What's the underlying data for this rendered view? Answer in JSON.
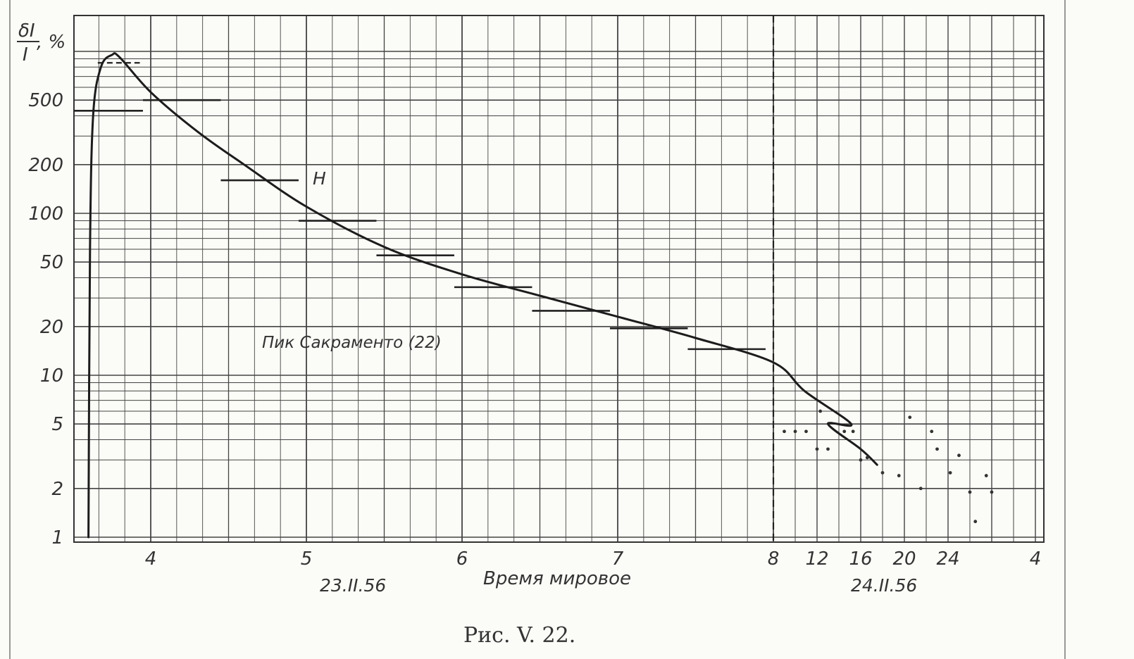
{
  "chart_data": {
    "type": "line",
    "title": "",
    "caption": "Рис. V. 22.",
    "xlabel": "Время мировое",
    "ylabel_numerator": "δI",
    "ylabel_denominator": "I",
    "ylabel_unit": ", %",
    "yscale": "log",
    "ylim": [
      1,
      1100
    ],
    "y_ticks": [
      1,
      2,
      5,
      10,
      20,
      50,
      100,
      200,
      500
    ],
    "x_ticks_hourly": [
      "4",
      "5",
      "6",
      "7",
      "8"
    ],
    "x_ticks_compressed": [
      "12",
      "16",
      "20",
      "24",
      "4"
    ],
    "date_labels": [
      "23.II.56",
      "24.II.56"
    ],
    "annotations": [
      "Пик Сакраменто (22)",
      "Н"
    ],
    "series": [
      {
        "name": "",
        "points_hourly": [
          [
            3.6,
            1
          ],
          [
            3.61,
            60
          ],
          [
            3.63,
            400
          ],
          [
            3.68,
            800
          ],
          [
            3.75,
            950
          ],
          [
            3.8,
            920
          ],
          [
            4.0,
            560
          ],
          [
            4.3,
            320
          ],
          [
            4.6,
            200
          ],
          [
            5.0,
            110
          ],
          [
            5.5,
            62
          ],
          [
            6.0,
            42
          ],
          [
            6.5,
            31
          ],
          [
            7.0,
            23
          ],
          [
            7.5,
            17
          ],
          [
            8.0,
            12
          ],
          [
            8.2,
            8
          ],
          [
            8.5,
            5
          ]
        ],
        "points_compressed_hours": [
          [
            13,
            5
          ],
          [
            16,
            3.5
          ],
          [
            17.5,
            2.8
          ]
        ]
      }
    ],
    "step_levels_hourly": [
      {
        "x0": 3.45,
        "x1": 3.95,
        "y": 430
      },
      {
        "x0": 3.95,
        "x1": 4.45,
        "y": 500
      },
      {
        "x0": 4.45,
        "x1": 4.95,
        "y": 160
      },
      {
        "x0": 4.95,
        "x1": 5.45,
        "y": 90
      },
      {
        "x0": 5.45,
        "x1": 5.95,
        "y": 55
      },
      {
        "x0": 5.95,
        "x1": 6.45,
        "y": 35
      },
      {
        "x0": 6.45,
        "x1": 6.95,
        "y": 25
      },
      {
        "x0": 6.95,
        "x1": 7.45,
        "y": 19.5
      },
      {
        "x0": 7.45,
        "x1": 7.95,
        "y": 14.5
      }
    ],
    "peak_dashed_level": {
      "x0": 3.66,
      "x1": 3.93,
      "y": 850
    },
    "scatter_points_compressed_hours": [
      [
        9.0,
        4.5
      ],
      [
        10.0,
        4.5
      ],
      [
        11.0,
        4.5
      ],
      [
        12.0,
        3.5
      ],
      [
        12.3,
        6.0
      ],
      [
        13.0,
        3.5
      ],
      [
        14.5,
        4.5
      ],
      [
        15.3,
        4.5
      ],
      [
        16.0,
        3.0
      ],
      [
        16.6,
        3.1
      ],
      [
        18.0,
        2.5
      ],
      [
        19.5,
        2.4
      ],
      [
        20.5,
        5.5
      ],
      [
        21.5,
        2.0
      ],
      [
        22.5,
        4.5
      ],
      [
        23.0,
        3.5
      ],
      [
        24.2,
        2.5
      ],
      [
        25.0,
        3.2
      ],
      [
        26.0,
        1.9
      ],
      [
        26.5,
        1.25
      ],
      [
        27.5,
        2.4
      ],
      [
        28.0,
        1.9
      ]
    ],
    "dashed_divider_x": 8,
    "grid": true
  }
}
